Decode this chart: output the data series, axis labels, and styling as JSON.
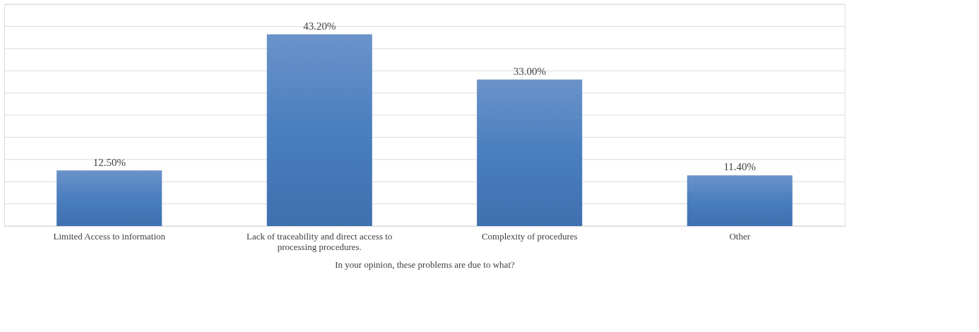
{
  "chart_data": {
    "type": "bar",
    "xlabel": "In your opinion, these problems are due to what?",
    "categories": [
      "Limited Access to information",
      "Lack of traceability and direct access to processing procedures.",
      "Complexity of procedures",
      "Other"
    ],
    "values": [
      12.5,
      43.2,
      33.0,
      11.4
    ],
    "value_labels": [
      "12.50%",
      "43.20%",
      "33.00%",
      "11.40%"
    ],
    "color": "#4a7ebf",
    "ylim": [
      0,
      50
    ],
    "yticks": [
      {
        "value": 0,
        "label": null
      },
      {
        "value": 5,
        "label": null
      },
      {
        "value": 10,
        "label": null
      },
      {
        "value": 15,
        "label": null
      },
      {
        "value": 20,
        "label": null
      },
      {
        "value": 25,
        "label": null
      },
      {
        "value": 30,
        "label": null
      },
      {
        "value": 35,
        "label": null
      },
      {
        "value": 40,
        "label": null
      },
      {
        "value": 45,
        "label": null
      },
      {
        "value": 50,
        "label": null
      }
    ],
    "tick_labels": "x",
    "grid": "y"
  }
}
